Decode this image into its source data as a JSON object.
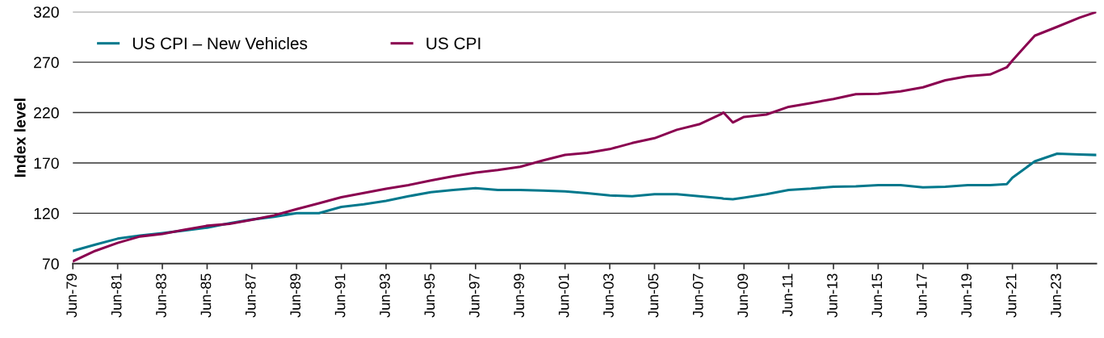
{
  "chart_data": {
    "type": "line",
    "ylabel": "Index level",
    "x": [
      "1979-06",
      "1980-06",
      "1981-06",
      "1982-06",
      "1983-06",
      "1984-06",
      "1985-06",
      "1986-06",
      "1987-06",
      "1988-06",
      "1989-06",
      "1990-06",
      "1991-06",
      "1992-06",
      "1993-06",
      "1994-06",
      "1995-06",
      "1996-06",
      "1997-06",
      "1998-06",
      "1999-06",
      "2000-06",
      "2001-06",
      "2002-06",
      "2003-06",
      "2004-06",
      "2005-06",
      "2006-06",
      "2007-06",
      "2008-06",
      "2008-07",
      "2008-12",
      "2009-06",
      "2010-06",
      "2011-06",
      "2012-06",
      "2013-06",
      "2014-06",
      "2015-06",
      "2016-06",
      "2017-06",
      "2018-06",
      "2019-06",
      "2020-06",
      "2021-03",
      "2021-06",
      "2022-06",
      "2023-06",
      "2024-06",
      "2025-03"
    ],
    "series": [
      {
        "name": "US CPI – New Vehicles",
        "color": "#00788c",
        "values": [
          82.6,
          88.9,
          94.8,
          97.8,
          100.3,
          103,
          105.7,
          110.1,
          113.8,
          116.6,
          120.1,
          120.1,
          126.3,
          129,
          132.3,
          136.9,
          141,
          143.1,
          145,
          143.1,
          143.1,
          142.5,
          141.8,
          139.9,
          137.7,
          136.9,
          138.9,
          138.9,
          137,
          135,
          134.5,
          134,
          135.5,
          138.9,
          143.1,
          144.5,
          146.4,
          146.7,
          148,
          148,
          145.8,
          146.4,
          148,
          148,
          149,
          155.3,
          171.6,
          179.2,
          178.4,
          177.9
        ]
      },
      {
        "name": "US CPI",
        "color": "#8a0050",
        "values": [
          72.3,
          82.7,
          90.6,
          97,
          99.5,
          103.7,
          107.6,
          109.5,
          113.5,
          118,
          124.1,
          129.9,
          136,
          140.2,
          144.4,
          148,
          152.5,
          156.7,
          160.3,
          163,
          166.2,
          172.4,
          178,
          179.9,
          183.7,
          189.7,
          194.5,
          202.9,
          208.4,
          218.8,
          220,
          210.2,
          215.7,
          218,
          225.7,
          229.5,
          233.5,
          238.3,
          238.6,
          241,
          245,
          252,
          256.1,
          257.8,
          264.9,
          271.7,
          296.3,
          305.1,
          314.2,
          319.8
        ]
      }
    ],
    "xlim": [
      "1979-06",
      "2025-03"
    ],
    "xticks": [
      {
        "value": "1979-06",
        "label": "Jun-79"
      },
      {
        "value": "1981-06",
        "label": "Jun-81"
      },
      {
        "value": "1983-06",
        "label": "Jun-83"
      },
      {
        "value": "1985-06",
        "label": "Jun-85"
      },
      {
        "value": "1987-06",
        "label": "Jun-87"
      },
      {
        "value": "1989-06",
        "label": "Jun-89"
      },
      {
        "value": "1991-06",
        "label": "Jun-91"
      },
      {
        "value": "1993-06",
        "label": "Jun-93"
      },
      {
        "value": "1995-06",
        "label": "Jun-95"
      },
      {
        "value": "1997-06",
        "label": "Jun-97"
      },
      {
        "value": "1999-06",
        "label": "Jun-99"
      },
      {
        "value": "2001-06",
        "label": "Jun-01"
      },
      {
        "value": "2003-06",
        "label": "Jun-03"
      },
      {
        "value": "2005-06",
        "label": "Jun-05"
      },
      {
        "value": "2007-06",
        "label": "Jun-07"
      },
      {
        "value": "2009-06",
        "label": "Jun-09"
      },
      {
        "value": "2011-06",
        "label": "Jun-11"
      },
      {
        "value": "2013-06",
        "label": "Jun-13"
      },
      {
        "value": "2015-06",
        "label": "Jun-15"
      },
      {
        "value": "2017-06",
        "label": "Jun-17"
      },
      {
        "value": "2019-06",
        "label": "Jun-19"
      },
      {
        "value": "2021-06",
        "label": "Jun-21"
      },
      {
        "value": "2023-06",
        "label": "Jun-23"
      }
    ],
    "ylim": [
      70,
      320
    ],
    "yticks": [
      70,
      120,
      170,
      220,
      270,
      320
    ],
    "grid": "y",
    "legend": "top left",
    "marker": "none",
    "line_style": "solid"
  }
}
